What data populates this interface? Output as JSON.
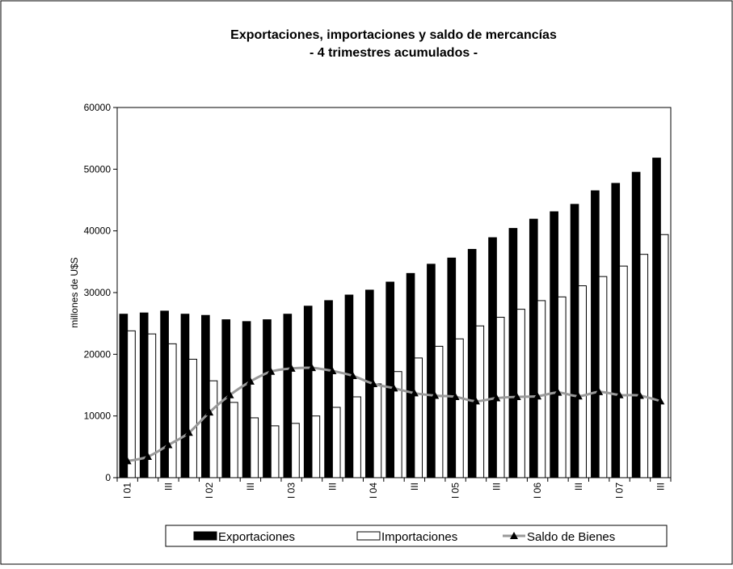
{
  "chart_data": {
    "type": "bar_line",
    "title": "Exportaciones, importaciones y saldo de mercancías",
    "subtitle": "- 4 trimestres acumulados -",
    "y_label": "millones de U$S",
    "categories": [
      "I 01",
      null,
      "III",
      null,
      "I 02",
      null,
      "III",
      null,
      "I 03",
      null,
      "III",
      null,
      "I 04",
      null,
      "III",
      null,
      "I 05",
      null,
      "III",
      null,
      "I 06",
      null,
      "III",
      null,
      "I 07",
      null,
      "III"
    ],
    "series": [
      {
        "name": "Exportaciones",
        "type": "bar",
        "color": "#000000",
        "values": [
          26500,
          26700,
          27000,
          26500,
          26300,
          25600,
          25300,
          25600,
          26500,
          27800,
          28700,
          29600,
          30400,
          31700,
          33100,
          34600,
          35600,
          37000,
          38900,
          40400,
          41900,
          43100,
          44300,
          46500,
          47700,
          49500,
          51800
        ]
      },
      {
        "name": "Importaciones",
        "type": "bar",
        "color": "#ffffff",
        "values": [
          23800,
          23300,
          21700,
          19200,
          15700,
          12200,
          9700,
          8400,
          8800,
          10000,
          11400,
          13100,
          15200,
          17200,
          19400,
          21300,
          22500,
          24600,
          26000,
          27300,
          28700,
          29300,
          31100,
          32600,
          34300,
          36200,
          39400
        ]
      },
      {
        "name": "Saldo de Bienes",
        "type": "line",
        "color": "#999999",
        "values": [
          2700,
          3400,
          5300,
          7300,
          10600,
          13400,
          15600,
          17200,
          17700,
          17800,
          17300,
          16500,
          15200,
          14500,
          13700,
          13300,
          13100,
          12400,
          12900,
          13100,
          13200,
          13800,
          13200,
          13900,
          13400,
          13300,
          12400
        ]
      }
    ],
    "ylim": [
      0,
      60000
    ],
    "yticks": [
      0,
      10000,
      20000,
      30000,
      40000,
      50000,
      60000
    ]
  }
}
